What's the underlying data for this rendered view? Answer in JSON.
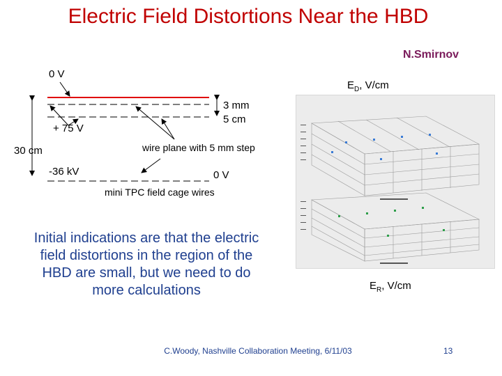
{
  "title": "Electric Field Distortions Near the HBD",
  "author": "N.Smirnov",
  "diagram": {
    "label_top_voltage": "0 V",
    "label_plus75": "+ 75 V",
    "label_30cm": "30 cm",
    "label_minus36kv": "-36 kV",
    "label_3mm": "3 mm",
    "label_5cm": "5 cm",
    "label_wire_plane": "wire plane with 5 mm step",
    "label_bottom_voltage": "0 V",
    "label_field_cage": "mini TPC field cage wires"
  },
  "plots": {
    "top_label_main": "E",
    "top_label_sub": "D",
    "top_label_unit": ", V/cm",
    "bottom_label_main": "E",
    "bottom_label_sub": "R",
    "bottom_label_unit": ", V/cm"
  },
  "body_text": "Initial indications are that the electric field distortions in the region of the HBD are small, but we need to do more calculations",
  "footer": "C.Woody, Nashville Collaboration Meeting, 6/11/03",
  "page_number": "13",
  "colors": {
    "title": "#c00000",
    "author": "#7a1a5a",
    "body_text": "#1f3f8f",
    "red_line": "#e00000"
  }
}
